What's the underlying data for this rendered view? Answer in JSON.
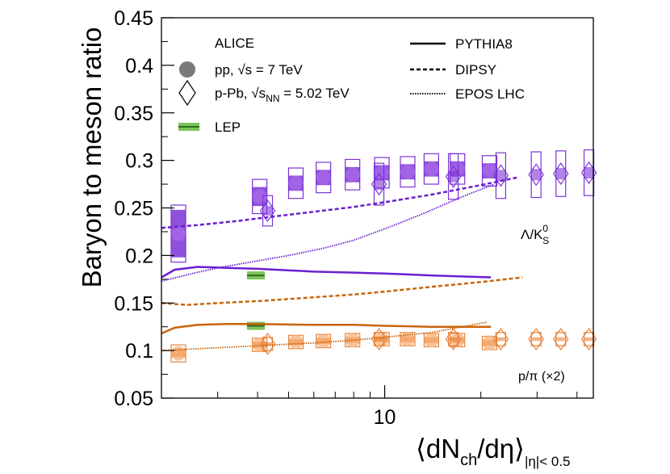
{
  "chart_data": {
    "type": "scatter",
    "title": "",
    "ylabel": "Baryon to meson ratio",
    "xlabel": {
      "main": "⟨dN",
      "sub1": "ch",
      "mid": "/dη⟩",
      "sub2": "|η|< 0.5"
    },
    "xscale": "log",
    "xlim": [
      2.0,
      45
    ],
    "ylim": [
      0.05,
      0.45
    ],
    "yticks": [
      0.05,
      0.1,
      0.15,
      0.2,
      0.25,
      0.3,
      0.35,
      0.4,
      0.45
    ],
    "ytick_labels": [
      "0.05",
      "0.1",
      "0.15",
      "0.2",
      "0.25",
      "0.3",
      "0.35",
      "0.4",
      "0.45"
    ],
    "xtick_labels": [
      "10"
    ],
    "legend": {
      "experiment": "ALICE",
      "pp_label": "pp, √s = 7 TeV",
      "ppb_label": "p-Pb, √s",
      "ppb_sub": "NN",
      "ppb_suffix": " = 5.02 TeV",
      "lep": "LEP",
      "pythia": "PYTHIA8",
      "dipsy": "DIPSY",
      "epos": "EPOS LHC"
    },
    "annotations": {
      "lambda_k0s": "Λ/K",
      "lambda_k0s_sup": "0",
      "lambda_k0s_sub": "S",
      "p_pi": "p/π (×2)"
    },
    "colors": {
      "lambda": "#7b33d6",
      "lambda_fill": "#a86ae8",
      "proton": "#e8823a",
      "proton_fill": "#f5b27a",
      "model_lambda": "#6a1fd0",
      "model_proton": "#c8640a",
      "lep": "#7cc45a",
      "lep_line": "#2d6e1a",
      "gray": "#7a7a7a"
    },
    "series": [
      {
        "name": "Λ/K0S pp 7 TeV",
        "marker": "circle",
        "x": [
          2.26,
          4.06,
          5.27,
          6.43,
          7.93,
          9.8,
          11.8,
          14.0,
          16.9,
          21.3
        ],
        "y": [
          0.223,
          0.262,
          0.276,
          0.282,
          0.285,
          0.287,
          0.288,
          0.291,
          0.291,
          0.289
        ],
        "syst": [
          0.03,
          0.018,
          0.016,
          0.016,
          0.016,
          0.016,
          0.016,
          0.016,
          0.016,
          0.016
        ],
        "uncorr": [
          0.025,
          0.01,
          0.008,
          0.008,
          0.008,
          0.008,
          0.008,
          0.008,
          0.008,
          0.008
        ]
      },
      {
        "name": "Λ/K0S p-Pb 5.02 TeV",
        "marker": "diamond",
        "x": [
          4.3,
          9.6,
          16.4,
          23.1,
          29.8,
          35.6,
          43.6
        ],
        "y": [
          0.247,
          0.275,
          0.283,
          0.284,
          0.285,
          0.286,
          0.287
        ],
        "syst": [
          0.016,
          0.022,
          0.024,
          0.024,
          0.024,
          0.024,
          0.024
        ],
        "uncorr": [
          0.005,
          0.006,
          0.006,
          0.006,
          0.006,
          0.006,
          0.006
        ]
      },
      {
        "name": "p/π (×2) pp 7 TeV",
        "marker": "circle",
        "x": [
          2.26,
          4.06,
          5.27,
          6.43,
          7.93,
          9.8,
          11.8,
          14.0,
          16.9,
          21.3
        ],
        "y": [
          0.097,
          0.106,
          0.109,
          0.11,
          0.111,
          0.112,
          0.112,
          0.111,
          0.111,
          0.108
        ],
        "syst": [
          0.009,
          0.007,
          0.007,
          0.007,
          0.007,
          0.007,
          0.007,
          0.007,
          0.007,
          0.007
        ],
        "uncorr": [
          0.004,
          0.003,
          0.003,
          0.003,
          0.003,
          0.003,
          0.003,
          0.003,
          0.003,
          0.003
        ]
      },
      {
        "name": "p/π (×2) p-Pb 5.02 TeV",
        "marker": "diamond",
        "x": [
          4.3,
          9.6,
          16.4,
          23.1,
          29.8,
          35.6,
          43.6
        ],
        "y": [
          0.107,
          0.112,
          0.112,
          0.112,
          0.112,
          0.112,
          0.112
        ],
        "syst": [
          0.007,
          0.007,
          0.007,
          0.007,
          0.007,
          0.007,
          0.007
        ],
        "uncorr": [
          0.002,
          0.002,
          0.002,
          0.002,
          0.002,
          0.002,
          0.002
        ]
      },
      {
        "name": "LEP",
        "marker": "band",
        "x": [
          3.95,
          3.95
        ],
        "y": [
          0.179,
          0.126
        ]
      }
    ],
    "models": [
      {
        "name": "PYTHIA8 Λ/K0S",
        "style": "solid",
        "group": "lambda",
        "x": [
          2.0,
          2.2,
          2.6,
          3.2,
          4.0,
          6.0,
          8.0,
          10.0,
          14.0,
          21.5
        ],
        "y": [
          0.177,
          0.185,
          0.188,
          0.187,
          0.186,
          0.183,
          0.182,
          0.181,
          0.179,
          0.177
        ]
      },
      {
        "name": "DIPSY Λ/K0S",
        "style": "dashed",
        "group": "lambda",
        "x": [
          2.0,
          2.6,
          3.4,
          4.5,
          6.0,
          8.0,
          10.0,
          14.0,
          20.0,
          26.0
        ],
        "y": [
          0.229,
          0.232,
          0.236,
          0.241,
          0.246,
          0.251,
          0.256,
          0.264,
          0.274,
          0.282
        ]
      },
      {
        "name": "EPOS LHC Λ/K0S",
        "style": "dotted",
        "group": "lambda",
        "x": [
          2.0,
          2.5,
          3.0,
          3.8,
          5.0,
          6.5,
          8.0,
          10.0,
          13.0,
          17.0,
          22.0
        ],
        "y": [
          0.173,
          0.181,
          0.187,
          0.193,
          0.2,
          0.208,
          0.216,
          0.228,
          0.243,
          0.26,
          0.275
        ]
      },
      {
        "name": "PYTHIA8 p/π",
        "style": "solid",
        "group": "proton",
        "x": [
          2.0,
          2.2,
          2.6,
          3.2,
          4.0,
          6.0,
          8.0,
          10.0,
          14.0,
          21.5
        ],
        "y": [
          0.118,
          0.124,
          0.127,
          0.128,
          0.128,
          0.127,
          0.127,
          0.126,
          0.125,
          0.125
        ]
      },
      {
        "name": "DIPSY p/π",
        "style": "dashed",
        "group": "proton",
        "x": [
          2.0,
          2.4,
          3.0,
          4.0,
          6.0,
          8.0,
          10.0,
          14.0,
          20.0,
          27.0
        ],
        "y": [
          0.15,
          0.148,
          0.15,
          0.152,
          0.156,
          0.159,
          0.162,
          0.167,
          0.172,
          0.177
        ]
      },
      {
        "name": "EPOS LHC p/π",
        "style": "dotted",
        "group": "proton",
        "x": [
          2.0,
          3.0,
          4.0,
          6.0,
          8.0,
          10.0,
          14.0,
          21.0
        ],
        "y": [
          0.1,
          0.103,
          0.105,
          0.108,
          0.111,
          0.114,
          0.119,
          0.13
        ]
      }
    ]
  }
}
